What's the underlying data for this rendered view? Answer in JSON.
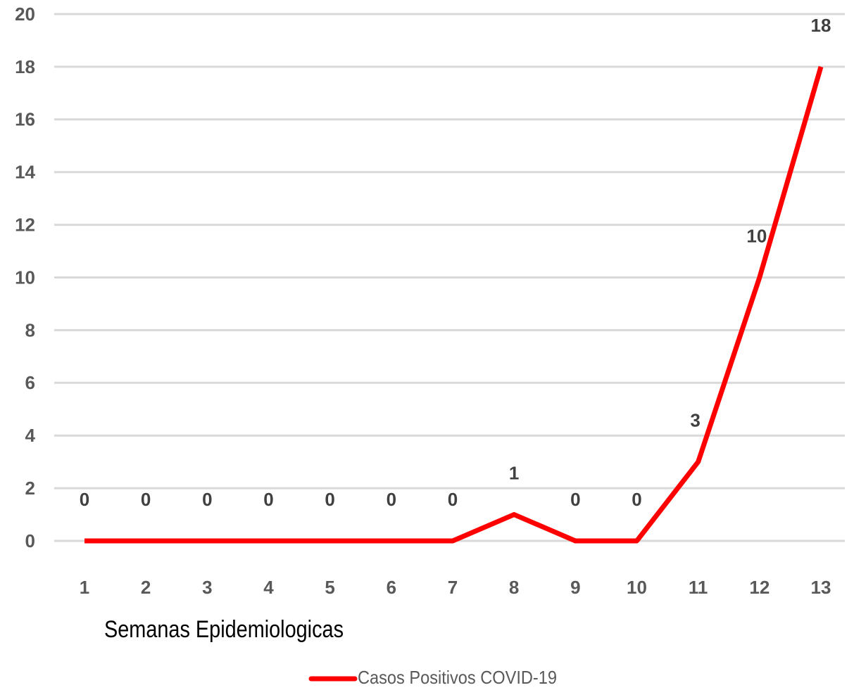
{
  "chart_data": {
    "type": "line",
    "x_label": "Semanas Epidemiologicas",
    "categories": [
      "1",
      "2",
      "3",
      "4",
      "5",
      "6",
      "7",
      "8",
      "9",
      "10",
      "11",
      "12",
      "13"
    ],
    "series": [
      {
        "name": "Casos Positivos COVID-19",
        "color": "#ff0000",
        "values": [
          0,
          0,
          0,
          0,
          0,
          0,
          0,
          1,
          0,
          0,
          3,
          10,
          18
        ]
      }
    ],
    "ylim": [
      0,
      20
    ],
    "yticks": [
      0,
      2,
      4,
      6,
      8,
      10,
      12,
      14,
      16,
      18,
      20
    ],
    "grid": true,
    "legend": "bottom"
  }
}
